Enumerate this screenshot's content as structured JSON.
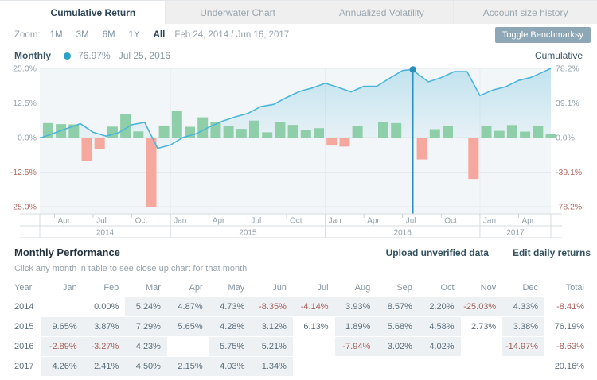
{
  "tabs": [
    {
      "label": "Cumulative Return",
      "active": true
    },
    {
      "label": "Underwater Chart",
      "active": false
    },
    {
      "label": "Annualized Volatility",
      "active": false
    },
    {
      "label": "Account size history",
      "active": false
    }
  ],
  "toolbar": {
    "zoom_label": "Zoom:",
    "zoom_options": [
      "1M",
      "3M",
      "6M",
      "1Y"
    ],
    "zoom_all": "All",
    "date_range": "Feb 24, 2014 / Jun 16, 2017",
    "benchmark_button": "Toggle Benchmarksy"
  },
  "legend": {
    "series_label": "Monthly",
    "marker_value": "76.97%",
    "marker_date": "Jul 25, 2016",
    "right_label": "Cumulative"
  },
  "chart_data": {
    "type": "bar",
    "subtype": "combo-monthly-bars-with-cumulative-line",
    "start_month": "2014-02",
    "end_date": "Jun 16, 2017",
    "bars_monthly_pct": [
      0.0,
      5.24,
      4.87,
      4.73,
      -8.35,
      -4.14,
      3.93,
      8.57,
      2.2,
      -25.03,
      4.33,
      9.65,
      3.87,
      7.29,
      5.65,
      4.28,
      3.12,
      6.13,
      1.89,
      5.68,
      4.58,
      2.73,
      3.38,
      -2.89,
      -3.27,
      4.23,
      null,
      5.75,
      5.21,
      null,
      -7.94,
      3.02,
      4.02,
      null,
      -14.97,
      4.26,
      2.41,
      4.5,
      2.15,
      4.03,
      1.34
    ],
    "cumulative_pct": [
      0.0,
      5.2,
      10.4,
      15.6,
      5.9,
      1.6,
      5.6,
      14.6,
      17.1,
      -12.2,
      -8.4,
      0.4,
      4.3,
      11.9,
      18.3,
      23.3,
      27.2,
      35.0,
      37.5,
      45.3,
      52.0,
      56.1,
      61.4,
      56.7,
      51.6,
      58.0,
      58.0,
      67.1,
      75.8,
      74.0,
      62.9,
      67.8,
      74.5,
      74.5,
      47.5,
      53.7,
      57.4,
      64.5,
      68.1,
      74.8,
      78.2
    ],
    "marker": {
      "month_index": 29,
      "month_frac": 0.8,
      "value": 76.97,
      "label": "76.97% Jul 25, 2016"
    },
    "left_axis_ticks": [
      "25.0%",
      "12.5%",
      "0.0%",
      "-12.5%",
      "-25.0%"
    ],
    "right_axis_ticks": [
      "78.2%",
      "39.1%",
      "0.0%",
      "-39.1%",
      "-78.2%"
    ],
    "left_axis_max": 25.0,
    "right_axis_max": 78.2,
    "x_quarter_ticks": [
      {
        "i": 2,
        "label": "Apr"
      },
      {
        "i": 5,
        "label": "Jul"
      },
      {
        "i": 8,
        "label": "Oct"
      },
      {
        "i": 11,
        "label": "Jan"
      },
      {
        "i": 14,
        "label": "Apr"
      },
      {
        "i": 17,
        "label": "Jul"
      },
      {
        "i": 20,
        "label": "Oct"
      },
      {
        "i": 23,
        "label": "Jan"
      },
      {
        "i": 26,
        "label": "Apr"
      },
      {
        "i": 29,
        "label": "Jul"
      },
      {
        "i": 32,
        "label": "Oct"
      },
      {
        "i": 35,
        "label": "Jan"
      },
      {
        "i": 38,
        "label": "Apr"
      }
    ],
    "year_bands": [
      {
        "label": "2014",
        "from": 0,
        "to": 11
      },
      {
        "label": "2015",
        "from": 11,
        "to": 23
      },
      {
        "label": "2016",
        "from": 23,
        "to": 35
      },
      {
        "label": "2017",
        "from": 35,
        "to": 41
      }
    ],
    "colors": {
      "bar_positive": "#8ecfa9",
      "bar_negative": "#f6a89f",
      "line": "#4db5d9",
      "marker": "#2a8fba",
      "grid": "#e3e9ec",
      "plot_bg": "#f3f6f8",
      "axis_text": "#95a2ab",
      "axis_text_negative": "#b06a62",
      "axis_line": "#d6dde1"
    }
  },
  "perf": {
    "title": "Monthly Performance",
    "link_upload": "Upload unverified data",
    "link_edit": "Edit daily returns",
    "subtitle": "Click any month in table to see close up chart for that month",
    "columns": [
      "Year",
      "Jan",
      "Feb",
      "Mar",
      "Apr",
      "May",
      "Jun",
      "Jul",
      "Aug",
      "Sep",
      "Oct",
      "Nov",
      "Dec",
      "Total"
    ],
    "rows": [
      {
        "year": "2014",
        "cells": [
          "",
          "0.00%",
          "5.24%",
          "4.87%",
          "4.73%",
          "-8.35%",
          "-4.14%",
          "3.93%",
          "8.57%",
          "2.20%",
          "-25.03%",
          "4.33%"
        ],
        "unverified": [
          1
        ],
        "total": "-8.41%"
      },
      {
        "year": "2015",
        "cells": [
          "9.65%",
          "3.87%",
          "7.29%",
          "5.65%",
          "4.28%",
          "3.12%",
          "6.13%",
          "1.89%",
          "5.68%",
          "4.58%",
          "2.73%",
          "3.38%"
        ],
        "unverified": [
          6,
          10
        ],
        "total": "76.19%"
      },
      {
        "year": "2016",
        "cells": [
          "-2.89%",
          "-3.27%",
          "4.23%",
          "",
          "5.75%",
          "5.21%",
          "",
          "-7.94%",
          "3.02%",
          "4.02%",
          "",
          "-14.97%"
        ],
        "unverified": [],
        "total": "-8.63%"
      },
      {
        "year": "2017",
        "cells": [
          "4.26%",
          "2.41%",
          "4.50%",
          "2.15%",
          "4.03%",
          "1.34%",
          "",
          "",
          "",
          "",
          "",
          ""
        ],
        "unverified": [],
        "total": "20.16%"
      }
    ]
  }
}
